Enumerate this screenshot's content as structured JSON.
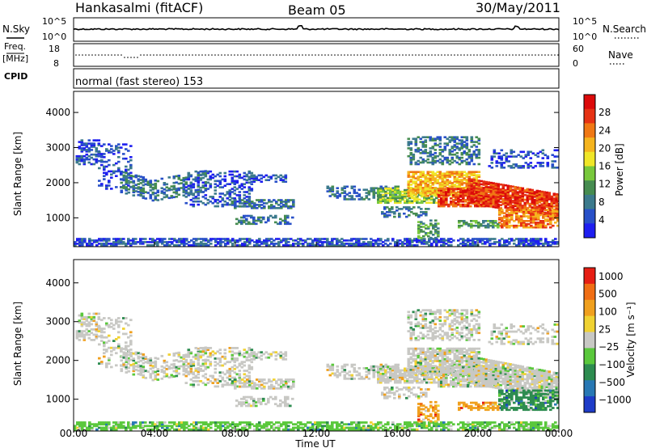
{
  "header": {
    "title": "Hankasalmi (fitACF)",
    "beam": "Beam 05",
    "date": "30/May/2011"
  },
  "strip_nsky": {
    "left_label": "N.Sky",
    "right_label": "N.Search",
    "yticks_left": [
      "10^5",
      "10^0"
    ],
    "yticks_right": [
      "10^5",
      "10^0"
    ]
  },
  "strip_freq": {
    "left_label_1": "Freq.",
    "left_label_2": "[MHz]",
    "right_label": "Nave",
    "yticks_left": [
      "18",
      "8"
    ],
    "yticks_right": [
      "60",
      "0"
    ]
  },
  "strip_cpid": {
    "left_label": "CPID",
    "mode_text": "normal (fast stereo) 153"
  },
  "colors": {
    "gray": "#c8c8c4",
    "bg": "#ffffff"
  },
  "chart_data": [
    {
      "type": "heatmap",
      "name": "power",
      "ylabel": "Slant Range [km]",
      "yticks": [
        1000,
        2000,
        3000,
        4000
      ],
      "ylim": [
        180,
        4600
      ],
      "xlim": [
        0,
        24
      ],
      "colorbar_label": "Power [dB]",
      "colorbar_ticks": [
        4,
        8,
        12,
        16,
        20,
        24,
        28
      ],
      "colorbar_colors": [
        "#1e1ef0",
        "#2850c8",
        "#3c7a8c",
        "#468c50",
        "#78c83c",
        "#f0e628",
        "#f5b41e",
        "#f07814",
        "#e63214",
        "#dc0a0a"
      ]
    },
    {
      "type": "heatmap",
      "name": "velocity",
      "ylabel": "Slant Range [km]",
      "yticks": [
        1000,
        2000,
        3000,
        4000
      ],
      "ylim": [
        180,
        4600
      ],
      "xlim": [
        0,
        24
      ],
      "xlabel": "Time UT",
      "xticks": [
        "00:00",
        "04:00",
        "08:00",
        "12:00",
        "16:00",
        "20:00",
        "00:00"
      ],
      "colorbar_label": "Velocity [m s⁻¹]",
      "colorbar_ticks": [
        "1000",
        "500",
        "100",
        "25",
        "−25",
        "−100",
        "−500",
        "−1000"
      ],
      "colorbar_colors": [
        "#1e3cc8",
        "#2878b4",
        "#2d8c50",
        "#5ac83c",
        "#c8c8c4",
        "#f0d232",
        "#f0a01e",
        "#f06e14",
        "#e61e14"
      ]
    }
  ]
}
